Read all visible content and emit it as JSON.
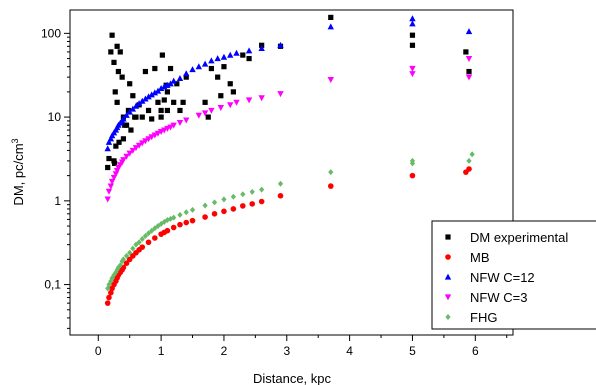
{
  "chart_data": {
    "type": "scatter",
    "xlabel": "Distance, kpc",
    "ylabel": "DM, pc/cm",
    "ylabel_sup": "3",
    "xlim": [
      -0.45,
      6.6
    ],
    "ylim": [
      0.025,
      190
    ],
    "y_scale": "log",
    "x_ticks": [
      0,
      1,
      2,
      3,
      4,
      5,
      6
    ],
    "x_minor_ticks": [
      0.5,
      1.5,
      2.5,
      3.5,
      4.5,
      5.5,
      6.5
    ],
    "y_ticks": [
      {
        "value": 0.1,
        "label": "0,1"
      },
      {
        "value": 1,
        "label": "1"
      },
      {
        "value": 10,
        "label": "10"
      },
      {
        "value": 100,
        "label": "100"
      }
    ],
    "grid": false,
    "legend_position": "bottom-right",
    "series": [
      {
        "name": "DM experimental",
        "marker": "square",
        "color": "#000000",
        "x": [
          0.15,
          0.17,
          0.2,
          0.22,
          0.25,
          0.25,
          0.26,
          0.27,
          0.28,
          0.3,
          0.3,
          0.32,
          0.33,
          0.35,
          0.38,
          0.4,
          0.4,
          0.42,
          0.45,
          0.48,
          0.5,
          0.52,
          0.55,
          0.58,
          0.6,
          0.65,
          0.7,
          0.75,
          0.8,
          0.85,
          0.9,
          0.95,
          1.0,
          1.0,
          1.02,
          1.05,
          1.08,
          1.1,
          1.1,
          1.15,
          1.2,
          1.25,
          1.3,
          1.35,
          1.4,
          1.7,
          1.75,
          1.8,
          1.9,
          1.95,
          2.0,
          2.1,
          2.15,
          2.3,
          2.4,
          2.6,
          2.9,
          3.7,
          5.0,
          5.0,
          5.85,
          5.9
        ],
        "y": [
          2.5,
          3.2,
          60,
          95,
          45,
          3,
          2.8,
          20,
          4.5,
          70,
          15,
          35,
          5,
          60,
          30,
          10,
          5.5,
          8,
          8,
          12,
          25,
          7,
          18,
          10,
          10,
          14,
          10,
          35,
          12,
          9.5,
          38,
          15,
          10,
          12,
          55,
          16,
          24,
          20,
          12,
          38,
          15,
          25,
          12,
          15,
          30,
          15,
          10,
          38,
          30,
          18,
          40,
          25,
          20,
          55,
          50,
          72,
          70,
          155,
          95,
          72,
          60,
          35
        ]
      },
      {
        "name": "MB",
        "marker": "circle",
        "color": "#ff0000",
        "x": [
          0.15,
          0.17,
          0.2,
          0.22,
          0.25,
          0.28,
          0.3,
          0.32,
          0.35,
          0.38,
          0.4,
          0.45,
          0.5,
          0.55,
          0.6,
          0.65,
          0.7,
          0.8,
          0.9,
          1.0,
          1.05,
          1.1,
          1.2,
          1.3,
          1.4,
          1.5,
          1.7,
          1.85,
          2.0,
          2.15,
          2.3,
          2.45,
          2.6,
          2.9,
          3.7,
          5.0,
          5.85,
          5.9
        ],
        "y": [
          0.06,
          0.07,
          0.08,
          0.09,
          0.1,
          0.11,
          0.12,
          0.13,
          0.14,
          0.15,
          0.16,
          0.18,
          0.2,
          0.22,
          0.24,
          0.26,
          0.28,
          0.32,
          0.36,
          0.4,
          0.42,
          0.44,
          0.48,
          0.52,
          0.55,
          0.58,
          0.64,
          0.7,
          0.75,
          0.8,
          0.87,
          0.92,
          0.98,
          1.15,
          1.5,
          2.0,
          2.2,
          2.4
        ]
      },
      {
        "name": "NFW C=12",
        "marker": "triangle-up",
        "color": "#0000ff",
        "x": [
          0.15,
          0.17,
          0.2,
          0.22,
          0.25,
          0.28,
          0.3,
          0.32,
          0.35,
          0.38,
          0.4,
          0.45,
          0.5,
          0.55,
          0.6,
          0.65,
          0.7,
          0.75,
          0.8,
          0.85,
          0.9,
          0.95,
          1.0,
          1.05,
          1.1,
          1.15,
          1.2,
          1.3,
          1.4,
          1.5,
          1.6,
          1.7,
          1.8,
          1.9,
          2.0,
          2.1,
          2.2,
          2.4,
          2.6,
          2.9,
          3.7,
          5.0,
          5.0,
          5.9
        ],
        "y": [
          4.2,
          5,
          5.5,
          6,
          6.5,
          7,
          7.5,
          8,
          8.5,
          9,
          9.5,
          10.5,
          11.5,
          12.5,
          13.5,
          14.5,
          15.5,
          16.5,
          17.5,
          18.5,
          19.5,
          20.5,
          22,
          23,
          24,
          25,
          27,
          29,
          33,
          37,
          40,
          43,
          47,
          50,
          52,
          55,
          58,
          62,
          66,
          72,
          120,
          150,
          130,
          105
        ]
      },
      {
        "name": "NFW C=3",
        "marker": "triangle-down",
        "color": "#ff00ff",
        "x": [
          0.15,
          0.17,
          0.2,
          0.22,
          0.25,
          0.28,
          0.3,
          0.32,
          0.35,
          0.38,
          0.4,
          0.45,
          0.5,
          0.55,
          0.6,
          0.65,
          0.7,
          0.75,
          0.8,
          0.85,
          0.9,
          0.95,
          1.0,
          1.05,
          1.1,
          1.15,
          1.2,
          1.3,
          1.4,
          1.6,
          1.7,
          1.8,
          1.95,
          2.1,
          2.2,
          2.4,
          2.6,
          2.9,
          3.7,
          5.0,
          5.0,
          5.9,
          5.9
        ],
        "y": [
          1.05,
          1.3,
          1.5,
          1.7,
          1.9,
          2.1,
          2.3,
          2.5,
          2.7,
          2.9,
          3.1,
          3.4,
          3.7,
          4.0,
          4.3,
          4.6,
          4.9,
          5.2,
          5.5,
          5.8,
          6.1,
          6.4,
          6.7,
          7.0,
          7.3,
          7.6,
          8,
          8.6,
          9.2,
          10.5,
          11.2,
          12,
          13,
          14,
          15,
          16,
          17,
          19,
          28,
          33,
          38,
          30,
          50
        ]
      },
      {
        "name": "FHG",
        "marker": "diamond",
        "color": "#66bb66",
        "x": [
          0.15,
          0.17,
          0.2,
          0.22,
          0.25,
          0.28,
          0.3,
          0.32,
          0.35,
          0.38,
          0.4,
          0.45,
          0.5,
          0.55,
          0.6,
          0.65,
          0.7,
          0.75,
          0.8,
          0.85,
          0.9,
          0.95,
          1.0,
          1.05,
          1.1,
          1.15,
          1.2,
          1.3,
          1.4,
          1.5,
          1.7,
          1.85,
          2.0,
          2.15,
          2.3,
          2.45,
          2.6,
          2.9,
          3.7,
          5.0,
          5.0,
          5.9,
          5.95
        ],
        "y": [
          0.09,
          0.1,
          0.11,
          0.12,
          0.13,
          0.14,
          0.15,
          0.16,
          0.17,
          0.19,
          0.2,
          0.22,
          0.24,
          0.27,
          0.3,
          0.32,
          0.35,
          0.38,
          0.41,
          0.44,
          0.47,
          0.5,
          0.53,
          0.56,
          0.59,
          0.61,
          0.63,
          0.68,
          0.73,
          0.78,
          0.88,
          0.96,
          1.04,
          1.12,
          1.2,
          1.28,
          1.36,
          1.6,
          2.2,
          2.8,
          3.0,
          3.0,
          3.6
        ]
      }
    ]
  }
}
